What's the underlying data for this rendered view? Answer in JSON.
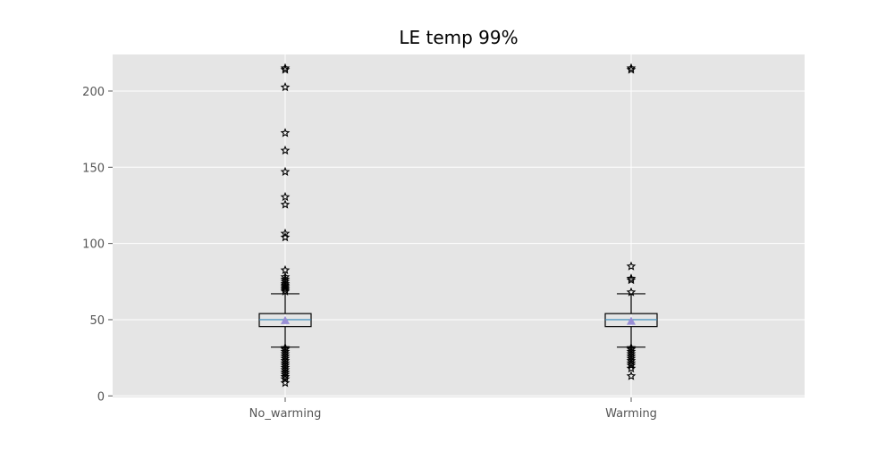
{
  "chart_data": {
    "type": "box",
    "title": "LE temp 99%",
    "xlabel": "",
    "ylabel": "",
    "categories": [
      "No_warming",
      "Warming"
    ],
    "ylim": [
      -1,
      224
    ],
    "yticks": [
      0,
      50,
      100,
      150,
      200
    ],
    "grid": true,
    "boxes": [
      {
        "category": "No_warming",
        "whisker_low": 32,
        "q1": 45.5,
        "median": 50,
        "q3": 54,
        "whisker_high": 67,
        "mean": 49.5,
        "outliers": [
          8.5,
          11,
          12.5,
          14,
          15.5,
          17,
          18.5,
          20,
          21.5,
          23,
          24.5,
          26,
          27.5,
          29,
          30.5,
          31.5,
          68.5,
          69.5,
          70.5,
          71.5,
          72.5,
          73.5,
          75,
          76.5,
          78,
          82.5,
          104,
          106.5,
          125.5,
          130.5,
          147,
          161,
          172.5,
          202.5,
          214,
          215
        ]
      },
      {
        "category": "Warming",
        "whisker_low": 32,
        "q1": 45.5,
        "median": 50,
        "q3": 54,
        "whisker_high": 67,
        "mean": 49,
        "outliers": [
          13,
          18,
          20,
          21.5,
          23,
          24.5,
          26,
          27.5,
          29,
          30.5,
          31.5,
          68,
          76,
          77,
          85,
          214,
          215
        ]
      }
    ]
  },
  "colors": {
    "plot_background": "#e5e5e5",
    "grid": "#ffffff",
    "box_edge": "#000000",
    "median_line": "#348abd",
    "mean_marker": "#988ed5",
    "outlier_edge": "#000000",
    "tick_label": "#555555"
  }
}
